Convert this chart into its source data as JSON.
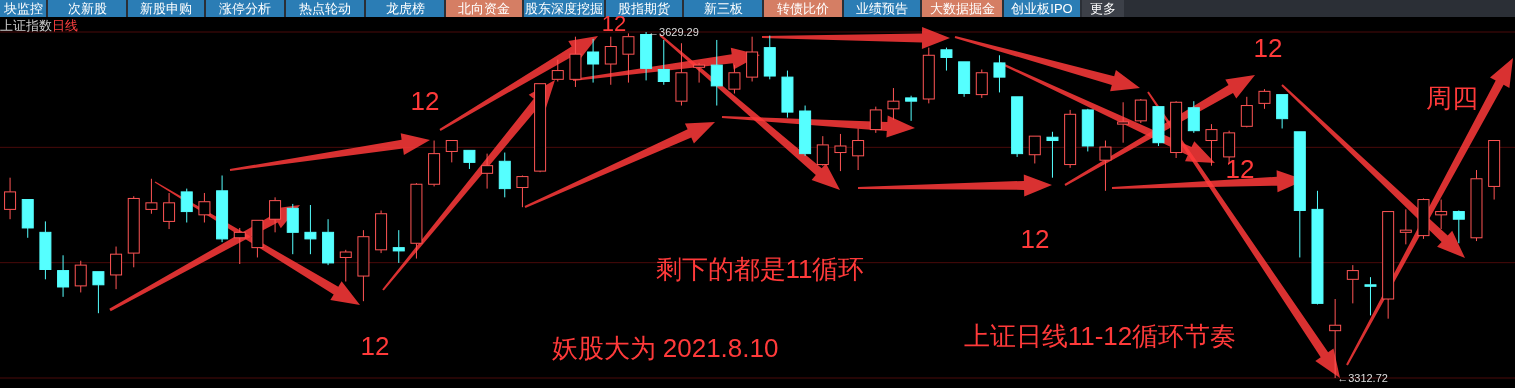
{
  "chart_data": {
    "type": "candlestick",
    "title": "上证指数",
    "subtitle": "日线",
    "categories": [
      null,
      null,
      null,
      null,
      null,
      null,
      null,
      null,
      null,
      null,
      null,
      null,
      null,
      null,
      null,
      null,
      null,
      null,
      null,
      null,
      null,
      null,
      null,
      null,
      null,
      null,
      null,
      null,
      null,
      null,
      null,
      null,
      null,
      null,
      null,
      null,
      null,
      null,
      null,
      null,
      null,
      null,
      null,
      null,
      null,
      null,
      null,
      null,
      null,
      null,
      null,
      null,
      null,
      null,
      null,
      null,
      null,
      null,
      null,
      null,
      null,
      null,
      null,
      null,
      null,
      null,
      null,
      null,
      null,
      null,
      null,
      null,
      null,
      null,
      null,
      null,
      null,
      null,
      null,
      null,
      null,
      null,
      null,
      null,
      null
    ],
    "ohlc": [
      [
        3467,
        3496,
        3458,
        3483
      ],
      [
        3476,
        3476,
        3441,
        3450
      ],
      [
        3446,
        3456,
        3403,
        3412
      ],
      [
        3411,
        3425,
        3387,
        3396
      ],
      [
        3397,
        3420,
        3391,
        3416
      ],
      [
        3410,
        3410,
        3372,
        3398
      ],
      [
        3407,
        3433,
        3394,
        3426
      ],
      [
        3427,
        3479,
        3414,
        3477
      ],
      [
        3467,
        3495,
        3463,
        3473
      ],
      [
        3456,
        3482,
        3449,
        3473
      ],
      [
        3483,
        3486,
        3455,
        3465
      ],
      [
        3462,
        3482,
        3455,
        3474
      ],
      [
        3484,
        3498,
        3437,
        3440
      ],
      [
        3441,
        3450,
        3417,
        3446
      ],
      [
        3432,
        3457,
        3423,
        3457
      ],
      [
        3458,
        3478,
        3446,
        3475
      ],
      [
        3468,
        3472,
        3426,
        3446
      ],
      [
        3446,
        3471,
        3426,
        3440
      ],
      [
        3446,
        3458,
        3416,
        3418
      ],
      [
        3423,
        3430,
        3401,
        3428
      ],
      [
        3406,
        3448,
        3383,
        3442
      ],
      [
        3430,
        3466,
        3427,
        3463
      ],
      [
        3432,
        3448,
        3418,
        3429
      ],
      [
        3436,
        3491,
        3422,
        3490
      ],
      [
        3490,
        3530,
        3488,
        3518
      ],
      [
        3520,
        3530,
        3510,
        3530
      ],
      [
        3521,
        3521,
        3504,
        3510
      ],
      [
        3500,
        3518,
        3486,
        3507
      ],
      [
        3511,
        3519,
        3478,
        3486
      ],
      [
        3487,
        3498,
        3469,
        3497
      ],
      [
        3502,
        3582,
        3501,
        3582
      ],
      [
        3586,
        3604,
        3584,
        3594
      ],
      [
        3586,
        3625,
        3579,
        3609
      ],
      [
        3611,
        3623,
        3583,
        3600
      ],
      [
        3600,
        3625,
        3581,
        3616
      ],
      [
        3609,
        3628,
        3583,
        3625
      ],
      [
        3627,
        3629.29,
        3585,
        3596
      ],
      [
        3595,
        3622,
        3581,
        3584
      ],
      [
        3566,
        3619,
        3562,
        3592
      ],
      [
        3597,
        3601,
        3583,
        3599
      ],
      [
        3599,
        3622,
        3562,
        3580
      ],
      [
        3577,
        3599,
        3573,
        3592
      ],
      [
        3588,
        3625,
        3584,
        3611
      ],
      [
        3615,
        3626,
        3586,
        3589
      ],
      [
        3588,
        3594,
        3551,
        3556
      ],
      [
        3557,
        3562,
        3516,
        3518
      ],
      [
        3508,
        3534,
        3507,
        3526
      ],
      [
        3519,
        3536,
        3502,
        3525
      ],
      [
        3516,
        3541,
        3503,
        3530
      ],
      [
        3540,
        3561,
        3537,
        3558
      ],
      [
        3559,
        3578,
        3549,
        3566
      ],
      [
        3569,
        3571,
        3548,
        3566
      ],
      [
        3568,
        3615,
        3564,
        3608
      ],
      [
        3613,
        3615,
        3594,
        3606
      ],
      [
        3602,
        3602,
        3570,
        3573
      ],
      [
        3572,
        3595,
        3569,
        3592
      ],
      [
        3601,
        3608,
        3574,
        3588
      ],
      [
        3570,
        3570,
        3515,
        3518
      ],
      [
        3517,
        3534,
        3509,
        3534
      ],
      [
        3533,
        3538,
        3496,
        3530
      ],
      [
        3508,
        3558,
        3505,
        3554
      ],
      [
        3558,
        3559,
        3520,
        3525
      ],
      [
        3512,
        3530,
        3484,
        3524
      ],
      [
        3545,
        3565,
        3528,
        3547
      ],
      [
        3548,
        3568,
        3546,
        3567
      ],
      [
        3561,
        3561,
        3525,
        3528
      ],
      [
        3519,
        3566,
        3514,
        3565
      ],
      [
        3560,
        3566,
        3537,
        3539
      ],
      [
        3530,
        3545,
        3507,
        3540
      ],
      [
        3515,
        3539,
        3509,
        3537
      ],
      [
        3543,
        3570,
        3542,
        3562
      ],
      [
        3564,
        3577,
        3559,
        3575
      ],
      [
        3572,
        3572,
        3541,
        3550
      ],
      [
        3538,
        3538,
        3423,
        3466
      ],
      [
        3467,
        3484,
        3380,
        3381
      ],
      [
        3356,
        3385,
        3312.72,
        3361
      ],
      [
        3403,
        3416,
        3381,
        3411
      ],
      [
        3398,
        3405,
        3370,
        3397
      ],
      [
        3385,
        3465,
        3367,
        3465
      ],
      [
        3446,
        3467,
        3435,
        3448
      ],
      [
        3443,
        3477,
        3440,
        3476
      ],
      [
        3462,
        3476,
        3449,
        3465
      ],
      [
        3465,
        3466,
        3436,
        3458
      ],
      [
        3441,
        3503,
        3438,
        3495
      ],
      [
        3488,
        3530,
        3476,
        3530
      ]
    ],
    "colors": [
      "#ff5555",
      "#55ffff",
      "#55ffff",
      "#55ffff",
      "#ff5555",
      "#55ffff",
      "#ff5555",
      "#ff5555",
      "#ff5555",
      "#ff5555",
      "#55ffff",
      "#ff5555",
      "#55ffff",
      "#ff5555",
      "#ff5555",
      "#ff5555",
      "#55ffff",
      "#55ffff",
      "#55ffff",
      "#ff5555",
      "#ff5555",
      "#ff5555",
      "#55ffff",
      "#ff5555",
      "#ff5555",
      "#ff5555",
      "#55ffff",
      "#ff5555",
      "#55ffff",
      "#ff5555",
      "#ff5555",
      "#ff5555",
      "#ff5555",
      "#55ffff",
      "#ff5555",
      "#ff5555",
      "#55ffff",
      "#55ffff",
      "#ff5555",
      "#ff5555",
      "#55ffff",
      "#ff5555",
      "#ff5555",
      "#55ffff",
      "#55ffff",
      "#55ffff",
      "#ff5555",
      "#ff5555",
      "#ff5555",
      "#ff5555",
      "#ff5555",
      "#55ffff",
      "#ff5555",
      "#55ffff",
      "#55ffff",
      "#ff5555",
      "#55ffff",
      "#55ffff",
      "#ff5555",
      "#55ffff",
      "#ff5555",
      "#55ffff",
      "#ff5555",
      "#ff5555",
      "#ff5555",
      "#55ffff",
      "#ff5555",
      "#55ffff",
      "#ff5555",
      "#ff5555",
      "#ff5555",
      "#ff5555",
      "#55ffff",
      "#55ffff",
      "#55ffff",
      "#ff5555",
      "#ff5555",
      "#55ffff",
      "#ff5555",
      "#ff5555",
      "#ff5555",
      "#ff5555",
      "#55ffff",
      "#ff5555",
      "#ff5555"
    ],
    "yticks": [
      {
        "value": 3312.72,
        "label": null
      },
      {
        "value": 3418.24,
        "label": null
      },
      {
        "value": 3523.77,
        "label": null
      },
      {
        "value": 3629.29,
        "label": null
      }
    ],
    "grid": "y",
    "annotations": [
      "块监控",
      "次新股",
      "新股申购",
      "涨停分析",
      "热点轮动",
      "龙虎榜",
      "北向资金",
      "股东深度挖掘",
      "股指期货",
      "新三板",
      "转债比价",
      "业绩预告",
      "大数据掘金",
      "创业板IPO",
      "更多",
      "12",
      "12",
      "12",
      "12",
      "12",
      "12",
      "剩下的都是11循环",
      "妖股大为 2021.8.10",
      "上证日线11-12循环节奏",
      "周四",
      "←3629.29",
      "←3312.72"
    ]
  }
}
